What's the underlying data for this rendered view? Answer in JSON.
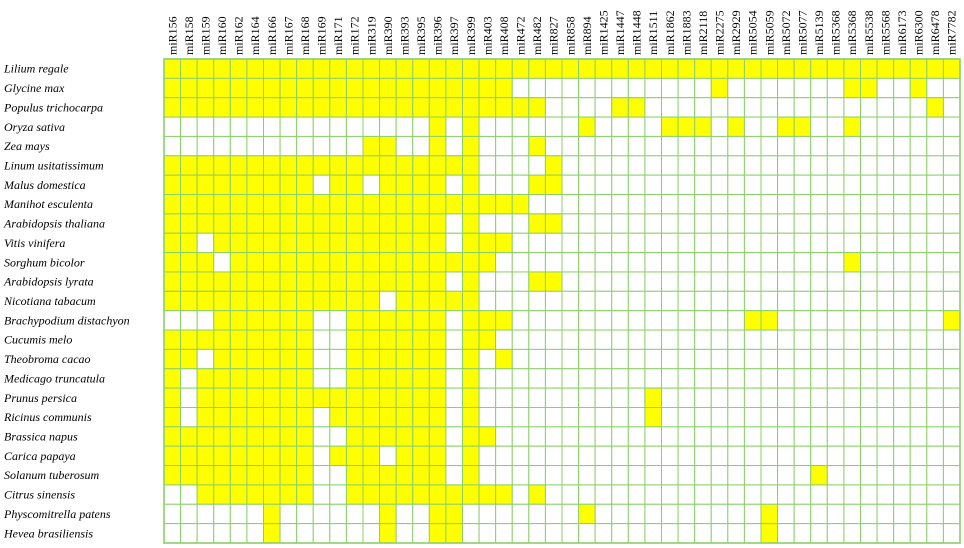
{
  "chart_data": {
    "type": "heatmap",
    "title": "",
    "xlabel": "",
    "ylabel": "",
    "present_color": "#ffff00",
    "absent_color": "#ffffff",
    "grid_color": "#8ccf6a",
    "columns": [
      "miR156",
      "miR158",
      "miR159",
      "miR160",
      "miR162",
      "miR164",
      "miR166",
      "miR167",
      "miR168",
      "miR169",
      "miR171",
      "miR172",
      "miR319",
      "miR390",
      "miR393",
      "miR395",
      "miR396",
      "miR397",
      "miR399",
      "miR403",
      "miR408",
      "miR472",
      "miR482",
      "miR827",
      "miR858",
      "miR894",
      "miR1425",
      "miR1447",
      "miR1448",
      "miR1511",
      "miR1862",
      "miR1883",
      "miR2118",
      "miR2275",
      "miR2929",
      "miR5054",
      "miR5059",
      "miR5072",
      "miR5077",
      "miR5139",
      "miR5368",
      "miR5368",
      "miR5538",
      "miR5568",
      "miR6173",
      "miR6300",
      "miR6478",
      "miR7782"
    ],
    "species": [
      "Lilium regale",
      "Glycine max",
      "Populus trichocarpa",
      "Oryza sativa",
      "Zea mays",
      "Linum usitatissimum",
      "Malus domestica",
      "Manihot esculenta",
      "Arabidopsis thaliana",
      "Vitis vinifera",
      "Sorghum bicolor",
      "Arabidopsis lyrata",
      "Nicotiana tabacum",
      "Brachypodium distachyon",
      "Cucumis melo",
      "Theobroma cacao",
      "Medicago truncatula",
      "Prunus persica",
      "Ricinus communis",
      "Brassica napus",
      "Carica papaya",
      "Solanum tuberosum",
      "Citrus sinensis",
      "Physcomitrella patens",
      "Hevea brasiliensis"
    ],
    "rows": [
      "111111111111111111111111111111111111111111111111",
      "111111111111111111111000000000000100000001100100",
      "111111111111111111111110000110000000000000000010",
      "000000000000000010100000010000111010011001000000",
      "000000000000110010100010000000000000000000000000",
      "111111111111111111100001000000000000000000000000",
      "111111111011011110100011000000000000000000000000",
      "111111111111111111111100000000000000000000000000",
      "111111111111111110100011000000000000000000000000",
      "110111111111111110111000000000000000000000000000",
      "111011111111111111110000000000000000000001000000",
      "111111111111111110100011000000000000000000000000",
      "111111111111101111100000000000000000000000000000",
      "000111111001111110111000000000000001100000000001",
      "111111111001111110110000000000000000000000000000",
      "110111111001111110101000000000000000000000000000",
      "101111111001111110100000000000000000000000000000",
      "101111111111111110100000000001000000000000000000",
      "101111111011111110100000000001000000000000000000",
      "111111111001111110110000000000000000000000000000",
      "111111111011101110100000000000000000000000000000",
      "111111111001111110100000000000000000000100000000",
      "001111111001111111111010000000000000000000000000",
      "000000100000010011000000010000000000100000000000",
      "000000100000010011000000000000000000100000000000"
    ]
  }
}
